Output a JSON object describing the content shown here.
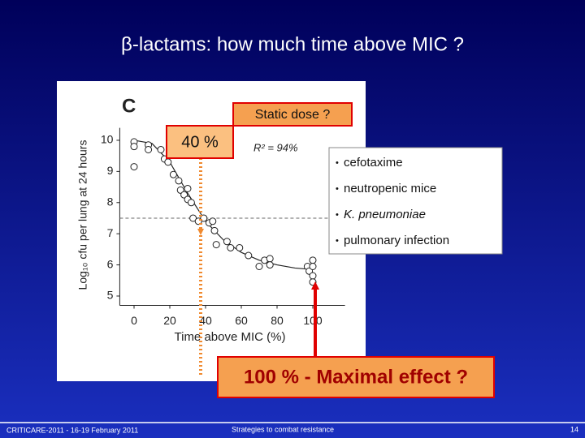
{
  "title": "β-lactams: how much time above MIC ?",
  "chart_data": {
    "type": "scatter",
    "panel_label": "C",
    "x_label": "Time above MIC (%)",
    "y_label": "Log₁₀ cfu per lung at 24 hours",
    "annotation": "R² = 94%",
    "x": [
      0,
      0,
      0,
      8,
      8,
      15,
      17,
      19,
      22,
      25,
      26,
      28,
      30,
      30,
      32,
      33,
      36,
      39,
      42,
      44,
      45,
      46,
      52,
      54,
      59,
      64,
      70,
      73,
      76,
      76,
      97,
      98,
      100,
      100,
      100,
      100
    ],
    "values": [
      9.95,
      9.8,
      9.15,
      9.85,
      9.7,
      9.7,
      9.4,
      9.3,
      8.9,
      8.7,
      8.4,
      8.25,
      8.45,
      8.1,
      8.0,
      7.5,
      7.4,
      7.5,
      7.35,
      7.4,
      7.1,
      6.65,
      6.75,
      6.55,
      6.55,
      6.3,
      5.95,
      6.15,
      6.2,
      6.0,
      5.95,
      5.8,
      6.15,
      5.95,
      5.65,
      5.45
    ],
    "fit": {
      "x": [
        0,
        10,
        20,
        30,
        40,
        50,
        60,
        70,
        80,
        90,
        100
      ],
      "values": [
        10.0,
        9.9,
        9.3,
        8.3,
        7.4,
        6.8,
        6.4,
        6.15,
        6.0,
        5.9,
        5.85
      ]
    },
    "static_dose_level": 7.5,
    "xlim": [
      -8,
      118
    ],
    "ylim": [
      4.7,
      10.4
    ],
    "xticks": [
      0,
      20,
      40,
      60,
      80,
      100
    ],
    "yticks": [
      5,
      6,
      7,
      8,
      9,
      10
    ]
  },
  "callouts": {
    "static": "Static dose ?",
    "time": "40 %",
    "maximal": "100 % - Maximal effect ?"
  },
  "bullets": [
    "cefotaxime",
    "neutropenic mice",
    "K. pneumoniae",
    "pulmonary infection"
  ],
  "footer": {
    "left": "CRITICARE-2011 - 16-19 February 2011",
    "center": "Strategies to combat resistance",
    "page": "14"
  }
}
